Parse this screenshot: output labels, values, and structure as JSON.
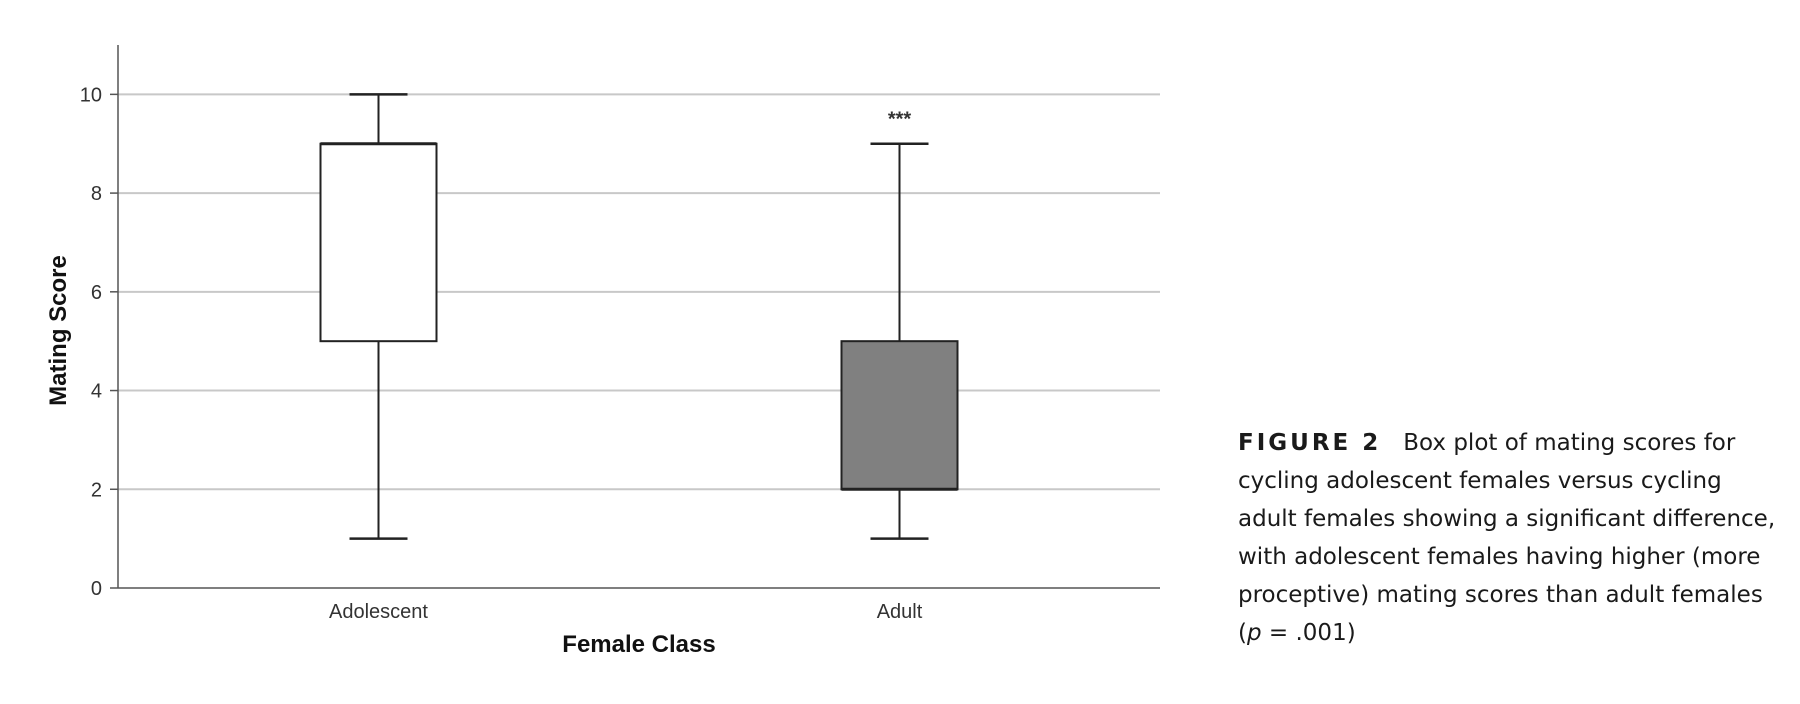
{
  "chart_data": {
    "type": "box",
    "title": "",
    "xlabel": "Female Class",
    "ylabel": "Mating Score",
    "ylim": [
      0,
      11
    ],
    "yticks": [
      0,
      2,
      4,
      6,
      8,
      10
    ],
    "grid": "horizontal",
    "categories": [
      "Adolescent",
      "Adult"
    ],
    "boxes": [
      {
        "category": "Adolescent",
        "min": 1,
        "q1": 5,
        "median": 9,
        "q3": 9,
        "max": 10,
        "fill": "#ffffff",
        "annotation": ""
      },
      {
        "category": "Adult",
        "min": 1,
        "q1": 2,
        "median": 2,
        "q3": 5,
        "max": 9,
        "fill": "#808080",
        "annotation": "***"
      }
    ]
  },
  "caption": {
    "label": "FIGURE 2",
    "text_before": "Box plot of mating scores for cycling adolescent females versus cycling adult females showing a significant difference, with adolescent females having higher (more proceptive) mating scores than adult females (",
    "p_symbol": "p",
    "text_after": " = .001)"
  }
}
